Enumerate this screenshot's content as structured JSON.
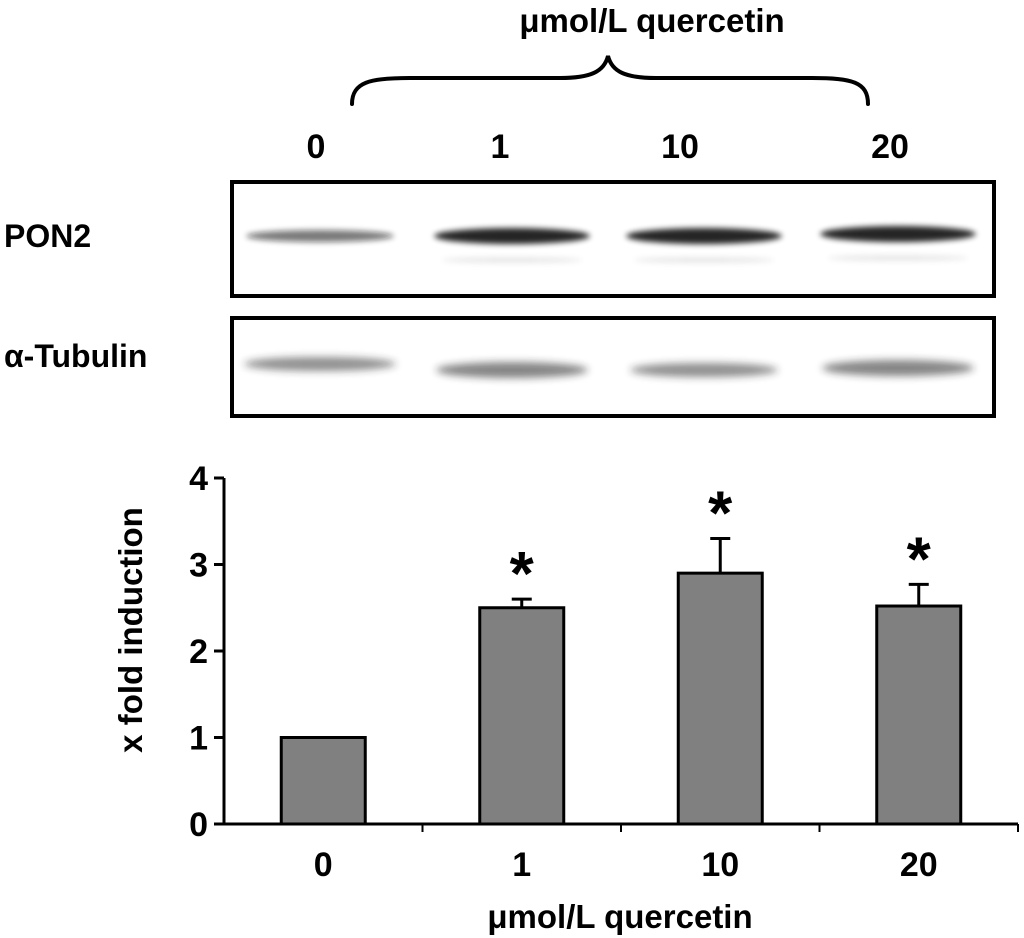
{
  "blot": {
    "treatment_label": "μmol/L quercetin",
    "concentrations": [
      "0",
      "1",
      "10",
      "20"
    ],
    "rows": [
      {
        "label": "PON2",
        "band_intensity": [
          0.55,
          0.85,
          0.85,
          0.85
        ]
      },
      {
        "label": "α-Tubulin",
        "band_intensity": [
          0.5,
          0.55,
          0.5,
          0.55
        ]
      }
    ]
  },
  "chart_data": {
    "type": "bar",
    "categories": [
      "0",
      "1",
      "10",
      "20"
    ],
    "values": [
      1.0,
      2.5,
      2.9,
      2.52
    ],
    "errors": [
      0,
      0.1,
      0.4,
      0.25
    ],
    "significance": [
      "",
      "*",
      "*",
      "*"
    ],
    "ylabel": "x fold induction",
    "xlabel": "μmol/L quercetin",
    "ylim": [
      0,
      4
    ],
    "yticks": [
      "0",
      "1",
      "2",
      "3",
      "4"
    ],
    "bar_color": "#808080",
    "grid": false,
    "legend": "none"
  }
}
